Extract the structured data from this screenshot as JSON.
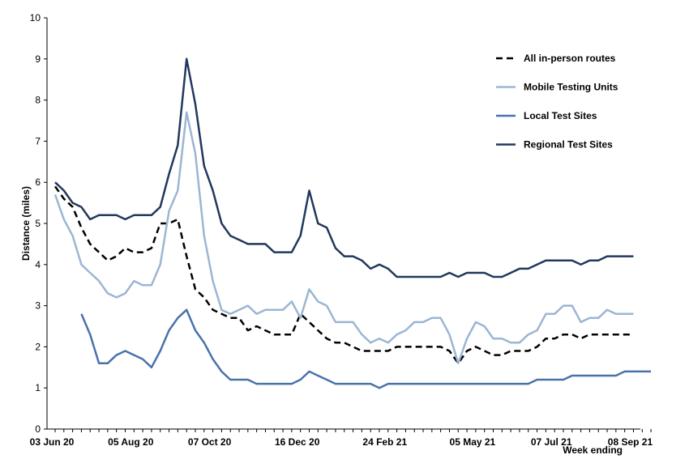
{
  "chart_data": {
    "type": "line",
    "title": "",
    "xlabel": "Week ending",
    "ylabel": "Distance (miles)",
    "ylim": [
      0,
      10
    ],
    "yticks": [
      0,
      1,
      2,
      3,
      4,
      5,
      6,
      7,
      8,
      9,
      10
    ],
    "grid": false,
    "legend_position": "top-right",
    "x_tick_labels": [
      "03 Jun 20",
      "05 Aug 20",
      "07 Oct 20",
      "16 Dec 20",
      "24 Feb 21",
      "05 May 21",
      "07 Jul 21",
      "08 Sep 21"
    ],
    "x_tick_index": [
      0,
      9,
      18,
      28,
      38,
      48,
      57,
      66
    ],
    "series": [
      {
        "name": "All in-person routes",
        "color": "#000000",
        "style": "dashed",
        "start_index": 0,
        "values": [
          5.9,
          5.6,
          5.4,
          4.9,
          4.5,
          4.3,
          4.1,
          4.2,
          4.4,
          4.3,
          4.3,
          4.4,
          5.0,
          5.0,
          5.1,
          4.2,
          3.4,
          3.2,
          2.9,
          2.8,
          2.7,
          2.7,
          2.4,
          2.5,
          2.4,
          2.3,
          2.3,
          2.3,
          2.8,
          2.6,
          2.4,
          2.2,
          2.1,
          2.1,
          2.0,
          1.9,
          1.9,
          1.9,
          1.9,
          2.0,
          2.0,
          2.0,
          2.0,
          2.0,
          2.0,
          1.9,
          1.6,
          1.9,
          2.0,
          1.9,
          1.8,
          1.8,
          1.9,
          1.9,
          1.9,
          2.0,
          2.2,
          2.2,
          2.3,
          2.3,
          2.2,
          2.3,
          2.3,
          2.3,
          2.3,
          2.3,
          2.3
        ]
      },
      {
        "name": "Mobile Testing Units",
        "color": "#9bb6d3",
        "style": "solid",
        "start_index": 0,
        "values": [
          5.7,
          5.1,
          4.7,
          4.0,
          3.8,
          3.6,
          3.3,
          3.2,
          3.3,
          3.6,
          3.5,
          3.5,
          4.0,
          5.3,
          5.8,
          7.7,
          6.7,
          4.7,
          3.6,
          2.9,
          2.8,
          2.9,
          3.0,
          2.8,
          2.9,
          2.9,
          2.9,
          3.1,
          2.7,
          3.4,
          3.1,
          3.0,
          2.6,
          2.6,
          2.6,
          2.3,
          2.1,
          2.2,
          2.1,
          2.3,
          2.4,
          2.6,
          2.6,
          2.7,
          2.7,
          2.3,
          1.6,
          2.2,
          2.6,
          2.5,
          2.2,
          2.2,
          2.1,
          2.1,
          2.3,
          2.4,
          2.8,
          2.8,
          3.0,
          3.0,
          2.6,
          2.7,
          2.7,
          2.9,
          2.8,
          2.8,
          2.8
        ]
      },
      {
        "name": "Local Test Sites",
        "color": "#4a72aa",
        "style": "solid",
        "start_index": 3,
        "values": [
          2.8,
          2.3,
          1.6,
          1.6,
          1.8,
          1.9,
          1.8,
          1.7,
          1.5,
          1.9,
          2.4,
          2.7,
          2.9,
          2.4,
          2.1,
          1.7,
          1.4,
          1.2,
          1.2,
          1.2,
          1.1,
          1.1,
          1.1,
          1.1,
          1.1,
          1.2,
          1.4,
          1.3,
          1.2,
          1.1,
          1.1,
          1.1,
          1.1,
          1.1,
          1.0,
          1.1,
          1.1,
          1.1,
          1.1,
          1.1,
          1.1,
          1.1,
          1.1,
          1.1,
          1.1,
          1.1,
          1.1,
          1.1,
          1.1,
          1.1,
          1.1,
          1.1,
          1.2,
          1.2,
          1.2,
          1.2,
          1.3,
          1.3,
          1.3,
          1.3,
          1.3,
          1.3,
          1.4,
          1.4,
          1.4,
          1.4
        ]
      },
      {
        "name": "Regional Test Sites",
        "color": "#22385c",
        "style": "solid",
        "start_index": 0,
        "values": [
          6.0,
          5.8,
          5.5,
          5.4,
          5.1,
          5.2,
          5.2,
          5.2,
          5.1,
          5.2,
          5.2,
          5.2,
          5.4,
          6.2,
          6.9,
          9.0,
          7.9,
          6.4,
          5.8,
          5.0,
          4.7,
          4.6,
          4.5,
          4.5,
          4.5,
          4.3,
          4.3,
          4.3,
          4.7,
          5.8,
          5.0,
          4.9,
          4.4,
          4.2,
          4.2,
          4.1,
          3.9,
          4.0,
          3.9,
          3.7,
          3.7,
          3.7,
          3.7,
          3.7,
          3.7,
          3.8,
          3.7,
          3.8,
          3.8,
          3.8,
          3.7,
          3.7,
          3.8,
          3.9,
          3.9,
          4.0,
          4.1,
          4.1,
          4.1,
          4.1,
          4.0,
          4.1,
          4.1,
          4.2,
          4.2,
          4.2,
          4.2
        ]
      }
    ]
  }
}
